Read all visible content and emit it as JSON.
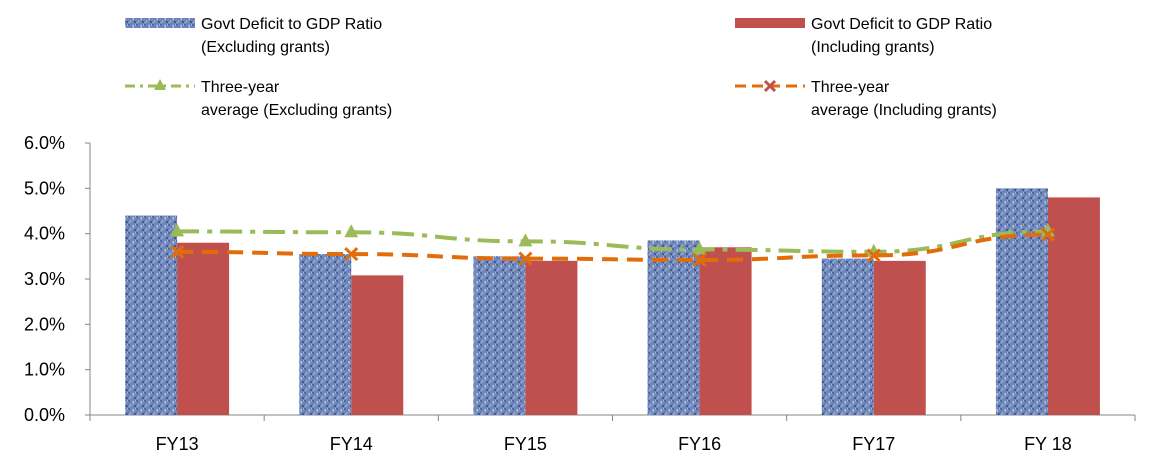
{
  "chart_data": {
    "type": "bar",
    "categories": [
      "FY13",
      "FY14",
      "FY15",
      "FY16",
      "FY17",
      "FY 18"
    ],
    "ylim": [
      0,
      6
    ],
    "yticks": [
      "0.0%",
      "1.0%",
      "2.0%",
      "3.0%",
      "4.0%",
      "5.0%",
      "6.0%"
    ],
    "grid": false,
    "legend_position": "top",
    "series": [
      {
        "name": "Govt Deficit to GDP Ratio (Excluding grants)",
        "label_lines": [
          "Govt Deficit to GDP Ratio",
          "(Excluding grants)"
        ],
        "type": "bar",
        "color": "#6f86b8",
        "values": [
          4.4,
          3.55,
          3.5,
          3.85,
          3.45,
          5.0
        ]
      },
      {
        "name": "Govt Deficit to GDP Ratio (Including grants)",
        "label_lines": [
          "Govt Deficit to GDP Ratio",
          "(Including grants)"
        ],
        "type": "bar",
        "color": "#c0504d",
        "values": [
          3.8,
          3.08,
          3.4,
          3.7,
          3.4,
          4.8
        ]
      },
      {
        "name": "Three-year average (Excluding grants)",
        "label_lines": [
          "Three-year",
          "average (Excluding grants)"
        ],
        "type": "line",
        "color": "#9bbb59",
        "marker": "triangle",
        "values": [
          4.05,
          4.03,
          3.83,
          3.65,
          3.6,
          4.05
        ]
      },
      {
        "name": "Three-year average (Including grants)",
        "label_lines": [
          "Three-year",
          "average (Including grants)"
        ],
        "type": "line",
        "color": "#e36c0a",
        "marker": "x",
        "values": [
          3.6,
          3.55,
          3.45,
          3.42,
          3.52,
          3.98
        ]
      }
    ]
  }
}
